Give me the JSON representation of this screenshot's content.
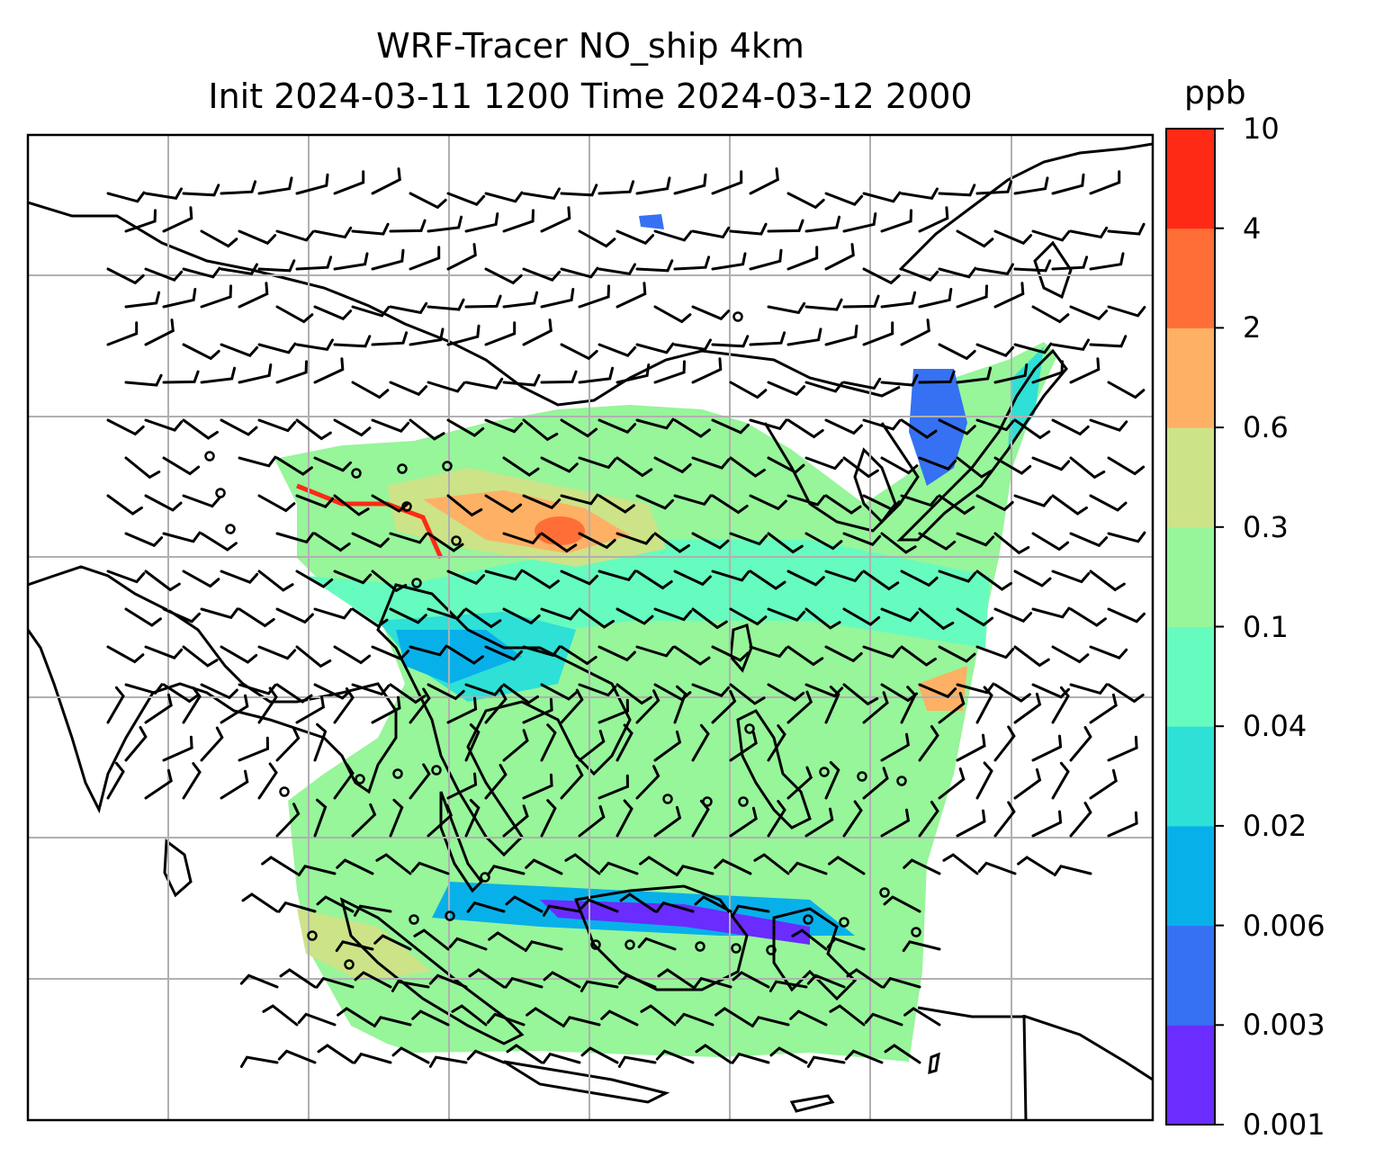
{
  "title_line1": "WRF-Tracer NO_ship 4km",
  "title_line2": "Init 2024-03-11 1200 Time 2024-03-12 2000",
  "colorbar": {
    "units": "ppb",
    "levels": [
      "0.001",
      "0.003",
      "0.006",
      "0.02",
      "0.04",
      "0.1",
      "0.3",
      "0.6",
      "2",
      "4",
      "10"
    ],
    "colors": [
      "#6a2cff",
      "#3571f2",
      "#08b0ea",
      "#2ee0d6",
      "#66fbbf",
      "#97f59a",
      "#cde388",
      "#feb065",
      "#ff6e36",
      "#ff2a15"
    ]
  },
  "map": {
    "gridlines": true,
    "field_name": "NO_ship",
    "vectors": "wind barbs"
  }
}
